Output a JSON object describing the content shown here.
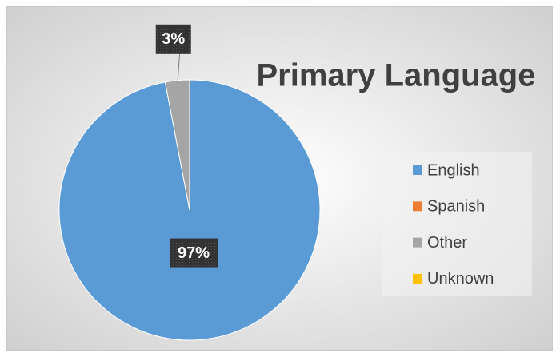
{
  "chart_data": {
    "type": "pie",
    "title": "Primary Language",
    "categories": [
      "English",
      "Spanish",
      "Other",
      "Unknown"
    ],
    "values": [
      97,
      0,
      3,
      0
    ],
    "value_labels": [
      "97%",
      null,
      "3%",
      null
    ],
    "colors": [
      "#5b9bd5",
      "#ed7d31",
      "#a5a5a5",
      "#ffc000"
    ],
    "legend": "right"
  }
}
